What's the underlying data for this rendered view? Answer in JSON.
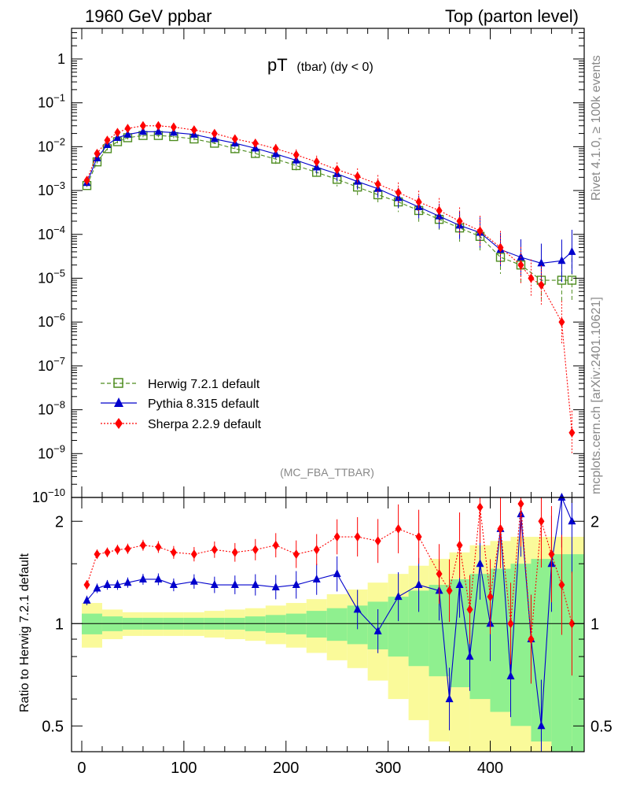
{
  "header": {
    "left": "1960 GeV ppbar",
    "right": "Top (parton level)"
  },
  "side_labels": {
    "rivet": "Rivet 4.1.0, ≥ 100k events",
    "mcplots": "mcplots.cern.ch [arXiv:2401.10621]"
  },
  "chart_data": [
    {
      "type": "line",
      "title": "pT",
      "title_suffix": "(tbar) (dy < 0)",
      "watermark": "(MC_FBA_TTBAR)",
      "yscale": "log",
      "xlim": [
        -10,
        492
      ],
      "ylim": [
        1e-10,
        5
      ],
      "ytick_labels": [
        {
          "base": "10",
          "exp": "−10",
          "v": 1e-10
        },
        {
          "base": "10",
          "exp": "−9",
          "v": 1e-09
        },
        {
          "base": "10",
          "exp": "−8",
          "v": 1e-08
        },
        {
          "base": "10",
          "exp": "−7",
          "v": 1e-07
        },
        {
          "base": "10",
          "exp": "−6",
          "v": 1e-06
        },
        {
          "base": "10",
          "exp": "−5",
          "v": 1e-05
        },
        {
          "base": "10",
          "exp": "−4",
          "v": 0.0001
        },
        {
          "base": "10",
          "exp": "−3",
          "v": 0.001
        },
        {
          "base": "10",
          "exp": "−2",
          "v": 0.01
        },
        {
          "base": "10",
          "exp": "−1",
          "v": 0.1
        },
        {
          "base": "1",
          "exp": "",
          "v": 1
        }
      ],
      "series": [
        {
          "name": "Herwig 7.2.1 default",
          "color": "#4d8c1f",
          "marker": "open-square",
          "line": "dashed",
          "x": [
            5,
            15,
            25,
            35,
            45,
            60,
            75,
            90,
            110,
            130,
            150,
            170,
            190,
            210,
            230,
            250,
            270,
            290,
            310,
            330,
            350,
            370,
            390,
            410,
            430,
            450,
            470,
            480
          ],
          "y": [
            0.0013,
            0.0045,
            0.009,
            0.013,
            0.016,
            0.018,
            0.018,
            0.017,
            0.015,
            0.012,
            0.009,
            0.007,
            0.0052,
            0.0037,
            0.0026,
            0.0018,
            0.0012,
            0.0008,
            0.00055,
            0.00035,
            0.00022,
            0.00014,
            9e-05,
            3e-05,
            2e-05,
            9e-06,
            9e-06,
            9e-06
          ]
        },
        {
          "name": "Pythia 8.315 default",
          "color": "#0000cc",
          "marker": "filled-triangle",
          "line": "solid",
          "x": [
            5,
            15,
            25,
            35,
            45,
            60,
            75,
            90,
            110,
            130,
            150,
            170,
            190,
            210,
            230,
            250,
            270,
            290,
            310,
            330,
            350,
            370,
            390,
            410,
            430,
            450,
            470,
            480
          ],
          "y": [
            0.0015,
            0.0055,
            0.011,
            0.016,
            0.019,
            0.022,
            0.022,
            0.021,
            0.019,
            0.015,
            0.012,
            0.0092,
            0.0068,
            0.0049,
            0.0034,
            0.0024,
            0.0016,
            0.0011,
            0.00068,
            0.00042,
            0.00026,
            0.00016,
            0.00011,
            4.5e-05,
            3e-05,
            2.2e-05,
            2.5e-05,
            4e-05
          ]
        },
        {
          "name": "Sherpa 2.2.9 default",
          "color": "#ff0000",
          "marker": "filled-diamond",
          "line": "dotted",
          "x": [
            5,
            15,
            25,
            35,
            45,
            60,
            75,
            90,
            110,
            130,
            150,
            170,
            190,
            210,
            230,
            250,
            270,
            290,
            310,
            330,
            350,
            370,
            390,
            410,
            430,
            440,
            450,
            470,
            480
          ],
          "y": [
            0.0017,
            0.007,
            0.014,
            0.021,
            0.026,
            0.03,
            0.03,
            0.028,
            0.024,
            0.02,
            0.015,
            0.012,
            0.009,
            0.0065,
            0.0045,
            0.003,
            0.0021,
            0.0014,
            0.0009,
            0.00055,
            0.00035,
            0.0002,
            0.00012,
            5e-05,
            2e-05,
            1e-05,
            7e-06,
            1e-06,
            3e-09
          ]
        }
      ]
    },
    {
      "type": "line",
      "ylabel": "Ratio to Herwig 7.2.1 default",
      "xlabel": "",
      "yscale": "log",
      "xlim": [
        -10,
        492
      ],
      "ylim": [
        0.42,
        2.35
      ],
      "xtick_labels": [
        "0",
        "100",
        "200",
        "300",
        "400"
      ],
      "ytick_labels": [
        "0.5",
        "1",
        "2"
      ],
      "series": [
        {
          "name": "Pythia 8.315 default",
          "color": "#0000cc",
          "x": [
            5,
            15,
            25,
            35,
            45,
            60,
            75,
            90,
            110,
            130,
            150,
            170,
            190,
            210,
            230,
            250,
            270,
            290,
            310,
            330,
            350,
            360,
            370,
            380,
            390,
            400,
            410,
            420,
            430,
            440,
            450,
            460,
            470,
            480
          ],
          "y": [
            1.17,
            1.27,
            1.3,
            1.3,
            1.32,
            1.35,
            1.35,
            1.3,
            1.33,
            1.3,
            1.3,
            1.3,
            1.28,
            1.3,
            1.35,
            1.4,
            1.1,
            0.95,
            1.2,
            1.3,
            1.25,
            0.6,
            1.3,
            0.8,
            1.5,
            1.0,
            1.9,
            0.7,
            2.1,
            0.9,
            0.5,
            1.5,
            2.4,
            2.0
          ]
        },
        {
          "name": "Sherpa 2.2.9 default",
          "color": "#ff0000",
          "x": [
            5,
            15,
            25,
            35,
            45,
            60,
            75,
            90,
            110,
            130,
            150,
            170,
            190,
            210,
            230,
            250,
            270,
            290,
            310,
            330,
            350,
            360,
            370,
            380,
            390,
            400,
            410,
            420,
            430,
            440,
            450,
            460,
            470,
            480
          ],
          "y": [
            1.3,
            1.6,
            1.62,
            1.65,
            1.66,
            1.7,
            1.68,
            1.62,
            1.6,
            1.65,
            1.62,
            1.65,
            1.7,
            1.6,
            1.65,
            1.8,
            1.8,
            1.75,
            1.9,
            1.8,
            1.4,
            1.25,
            1.7,
            1.1,
            2.2,
            1.2,
            1.9,
            1.0,
            2.25,
            0.9,
            2.0,
            1.6,
            1.3,
            1.0
          ]
        },
        {
          "name": "Herwig 7.2.1 default",
          "color": "#4d8c1f",
          "reference": true,
          "x": [
            0,
            492
          ],
          "y": [
            1,
            1
          ]
        }
      ],
      "bands": {
        "green_rel": [
          0.07,
          0.05,
          0.04,
          0.04,
          0.04,
          0.04,
          0.04,
          0.04,
          0.05,
          0.06,
          0.07,
          0.09,
          0.11,
          0.13,
          0.16,
          0.2,
          0.25,
          0.3,
          0.35,
          0.4,
          0.45,
          0.5,
          0.55,
          0.6,
          0.6
        ],
        "yellow_rel": [
          0.15,
          0.1,
          0.08,
          0.08,
          0.08,
          0.08,
          0.09,
          0.1,
          0.11,
          0.13,
          0.15,
          0.18,
          0.22,
          0.26,
          0.32,
          0.4,
          0.48,
          0.55,
          0.62,
          0.7,
          0.75,
          0.8,
          0.8,
          0.8,
          0.8
        ],
        "x_edges": [
          0,
          20,
          40,
          60,
          80,
          100,
          120,
          140,
          160,
          180,
          200,
          220,
          240,
          260,
          280,
          300,
          320,
          340,
          360,
          380,
          400,
          420,
          440,
          460,
          480,
          492
        ]
      }
    }
  ]
}
